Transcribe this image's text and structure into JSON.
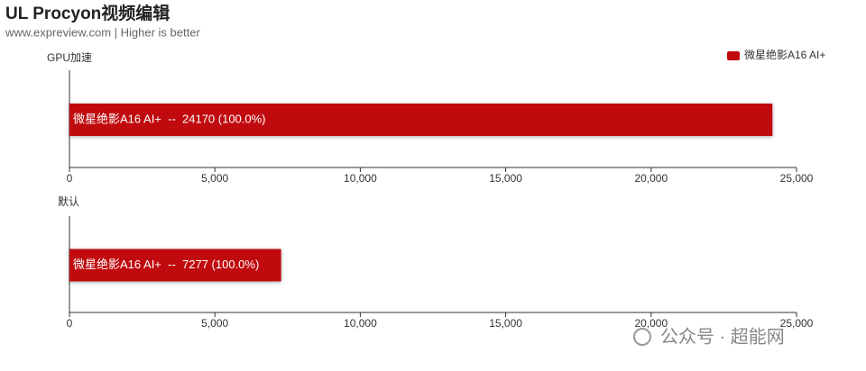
{
  "title": "UL Procyon视频编辑",
  "subtitle": "www.expreview.com | Higher is better",
  "watermark": "公众号 · 超能网",
  "chart_data": [
    {
      "type": "bar",
      "orientation": "horizontal",
      "axis_label": "GPU加速",
      "legend": "top-right",
      "series": [
        {
          "name": "微星绝影A16 AI+",
          "color": "#c00a0e",
          "values": [
            24170
          ],
          "value_labels": [
            "微星绝影A16 AI+  --  24170 (100.0%)"
          ]
        }
      ],
      "xlim": [
        0,
        25000
      ],
      "xticks": [
        0,
        {
          "value": 5000,
          "label": "5,000"
        },
        {
          "value": 10000,
          "label": "10,000"
        },
        {
          "value": 15000,
          "label": "15,000"
        },
        {
          "value": 20000,
          "label": "20,000"
        },
        {
          "value": 25000,
          "label": "25,000"
        }
      ]
    },
    {
      "type": "bar",
      "orientation": "horizontal",
      "axis_label": "默认",
      "series": [
        {
          "name": "微星绝影A16 AI+",
          "color": "#c00a0e",
          "values": [
            7277
          ],
          "value_labels": [
            "微星绝影A16 AI+  --  7277 (100.0%)"
          ]
        }
      ],
      "xlim": [
        0,
        25000
      ],
      "xticks": [
        0,
        {
          "value": 5000,
          "label": "5,000"
        },
        {
          "value": 10000,
          "label": "10,000"
        },
        {
          "value": 15000,
          "label": "15,000"
        },
        {
          "value": 20000,
          "label": "20,000"
        },
        {
          "value": 25000,
          "label": "25,000"
        }
      ]
    }
  ]
}
